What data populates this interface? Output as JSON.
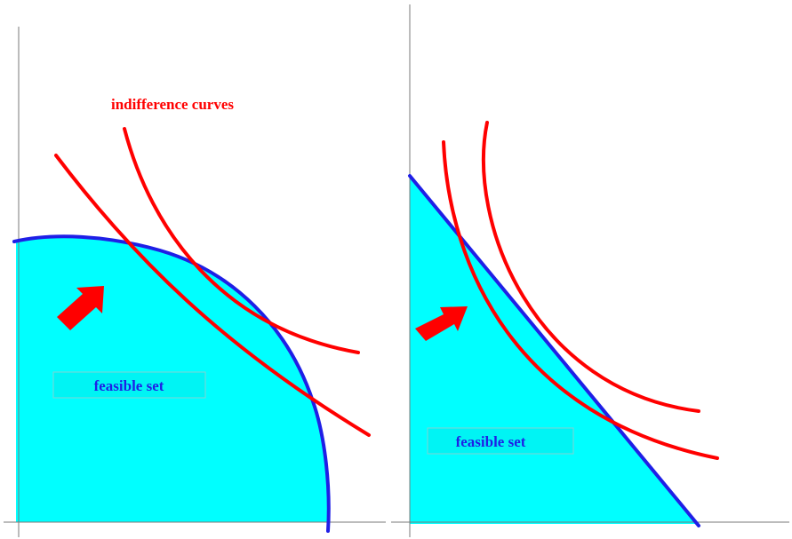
{
  "title_annotation": {
    "text": "indifference curves",
    "color": "#ff0000"
  },
  "panels": [
    {
      "id": "left",
      "frontier_shape": "concave",
      "feasible_set_label": "feasible set",
      "label_color": "#1f1fe6",
      "fill_color": "#00ffff",
      "frontier_color": "#1f1fe6",
      "indifference_curve_count": 2
    },
    {
      "id": "right",
      "frontier_shape": "linear",
      "feasible_set_label": "feasible set",
      "label_color": "#1f1fe6",
      "fill_color": "#00ffff",
      "frontier_color": "#1f1fe6",
      "indifference_curve_count": 2
    }
  ],
  "colors": {
    "curves": "#ff0000",
    "arrows": "#ff0000",
    "axes": "#7a7a7a"
  }
}
